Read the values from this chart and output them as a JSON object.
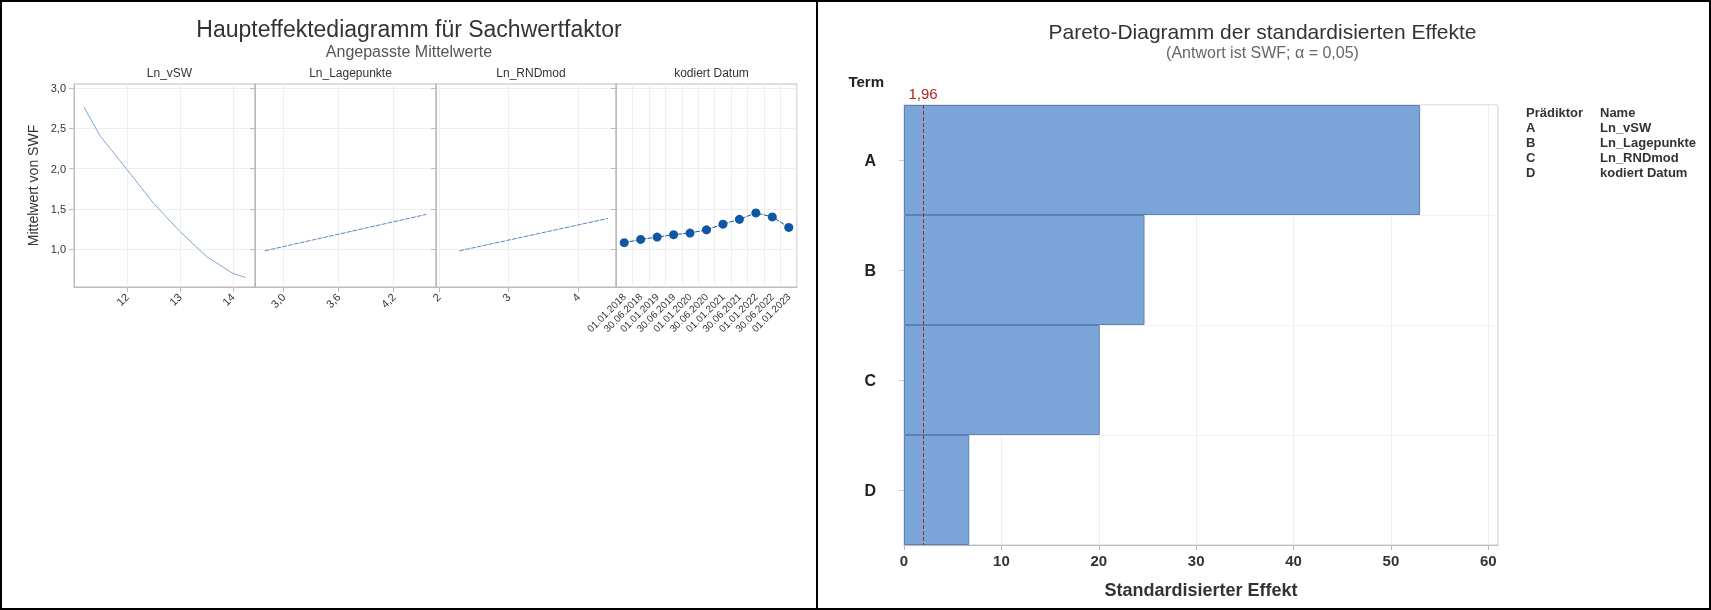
{
  "chart_data": [
    {
      "type": "other",
      "title": "Haupteffektediagramm für Sachwertfaktor",
      "subtitle": "Angepasste Mittelwerte"
    },
    {
      "type": "line",
      "title": "Ln_vSW",
      "ylabel": "Mittelwert von SWF",
      "x": [
        11.19,
        11.5,
        12,
        12.5,
        13,
        13.5,
        14,
        14.23
      ],
      "values": [
        2.76,
        2.4,
        1.99,
        1.57,
        1.22,
        0.91,
        0.7,
        0.65
      ],
      "color": "#7ea6d4",
      "xlim": [
        11.0,
        14.42
      ],
      "xticks": [
        12,
        13,
        14
      ],
      "ylim": [
        0.53,
        3.05
      ],
      "yticks": [
        {
          "value": 1,
          "label": "1,0"
        },
        {
          "value": 1.5,
          "label": "1,5"
        },
        {
          "value": 2,
          "label": "2,0"
        },
        {
          "value": 2.5,
          "label": "2,5"
        },
        {
          "value": 3,
          "label": "3,0"
        }
      ],
      "grid": true
    },
    {
      "type": "line",
      "title": "Ln_Lagepunkte",
      "x": [
        2.8,
        4.55
      ],
      "values": [
        0.98,
        1.43
      ],
      "color": "#5b86c5",
      "line_style": "dashed",
      "xlim": [
        2.69,
        4.66
      ],
      "xticks": [
        {
          "value": 3,
          "label": "3,0"
        },
        {
          "value": 3.6,
          "label": "3,6"
        },
        {
          "value": 4.2,
          "label": "4,2"
        }
      ],
      "ylim": [
        0.53,
        3.05
      ],
      "yticks": [
        {
          "value": 1,
          "label": null
        },
        {
          "value": 1.5,
          "label": null
        },
        {
          "value": 2,
          "label": null
        },
        {
          "value": 2.5,
          "label": null
        },
        {
          "value": 3,
          "label": null
        }
      ],
      "tick_labels": "x",
      "grid": true
    },
    {
      "type": "line",
      "title": "Ln_RNDmod",
      "x": [
        2.3,
        4.42
      ],
      "values": [
        0.98,
        1.38
      ],
      "color": "#5b86c5",
      "line_style": "dashed",
      "xlim": [
        1.96,
        4.54
      ],
      "xticks": [
        2,
        3,
        4
      ],
      "ylim": [
        0.53,
        3.05
      ],
      "yticks": [
        {
          "value": 1,
          "label": null
        },
        {
          "value": 1.5,
          "label": null
        },
        {
          "value": 2,
          "label": null
        },
        {
          "value": 2.5,
          "label": null
        },
        {
          "value": 3,
          "label": null
        }
      ],
      "tick_labels": "x",
      "grid": true
    },
    {
      "type": "line",
      "title": "kodiert Datum",
      "categories": [
        "01.01.2018",
        "30.06.2018",
        "01.01.2019",
        "30.06.2019",
        "01.01.2020",
        "30.06.2020",
        "01.01.2021",
        "30.06.2021",
        "01.01.2022",
        "30.06.2022",
        "01.01.2023"
      ],
      "values": [
        1.08,
        1.12,
        1.15,
        1.18,
        1.2,
        1.24,
        1.31,
        1.37,
        1.45,
        1.4,
        1.27
      ],
      "color": "#0f56a3",
      "marker": "circle",
      "line_style": "dashed",
      "ylim": [
        0.53,
        3.05
      ],
      "yticks": [
        {
          "value": 1,
          "label": null
        },
        {
          "value": 1.5,
          "label": null
        },
        {
          "value": 2,
          "label": null
        },
        {
          "value": 2.5,
          "label": null
        },
        {
          "value": 3,
          "label": null
        }
      ],
      "tick_labels": "x",
      "grid": true
    },
    {
      "type": "bar",
      "orientation": "horizontal",
      "title": "Pareto-Diagramm der standardisierten Effekte",
      "subtitle": "(Antwort ist SWF; α = 0,05)",
      "ylabel": "Term",
      "xlabel": "Standardisierter Effekt",
      "categories": [
        "A",
        "B",
        "C",
        "D"
      ],
      "values": [
        53.0,
        24.7,
        20.1,
        6.7
      ],
      "color": "#7ba4d8",
      "xlim": [
        0,
        61
      ],
      "xticks": [
        0,
        10,
        20,
        30,
        40,
        50,
        60
      ],
      "grid": true,
      "ref_lines": [
        {
          "axis": "x",
          "value": 1.96,
          "label": "1,96",
          "color": "#b22222",
          "line_style": "dashed"
        }
      ],
      "annotations": [
        "Prädiktor",
        "Name",
        "A",
        "Ln_vSW",
        "B",
        "Ln_Lagepunkte",
        "C",
        "Ln_RNDmod",
        "D",
        "kodiert Datum"
      ]
    }
  ]
}
